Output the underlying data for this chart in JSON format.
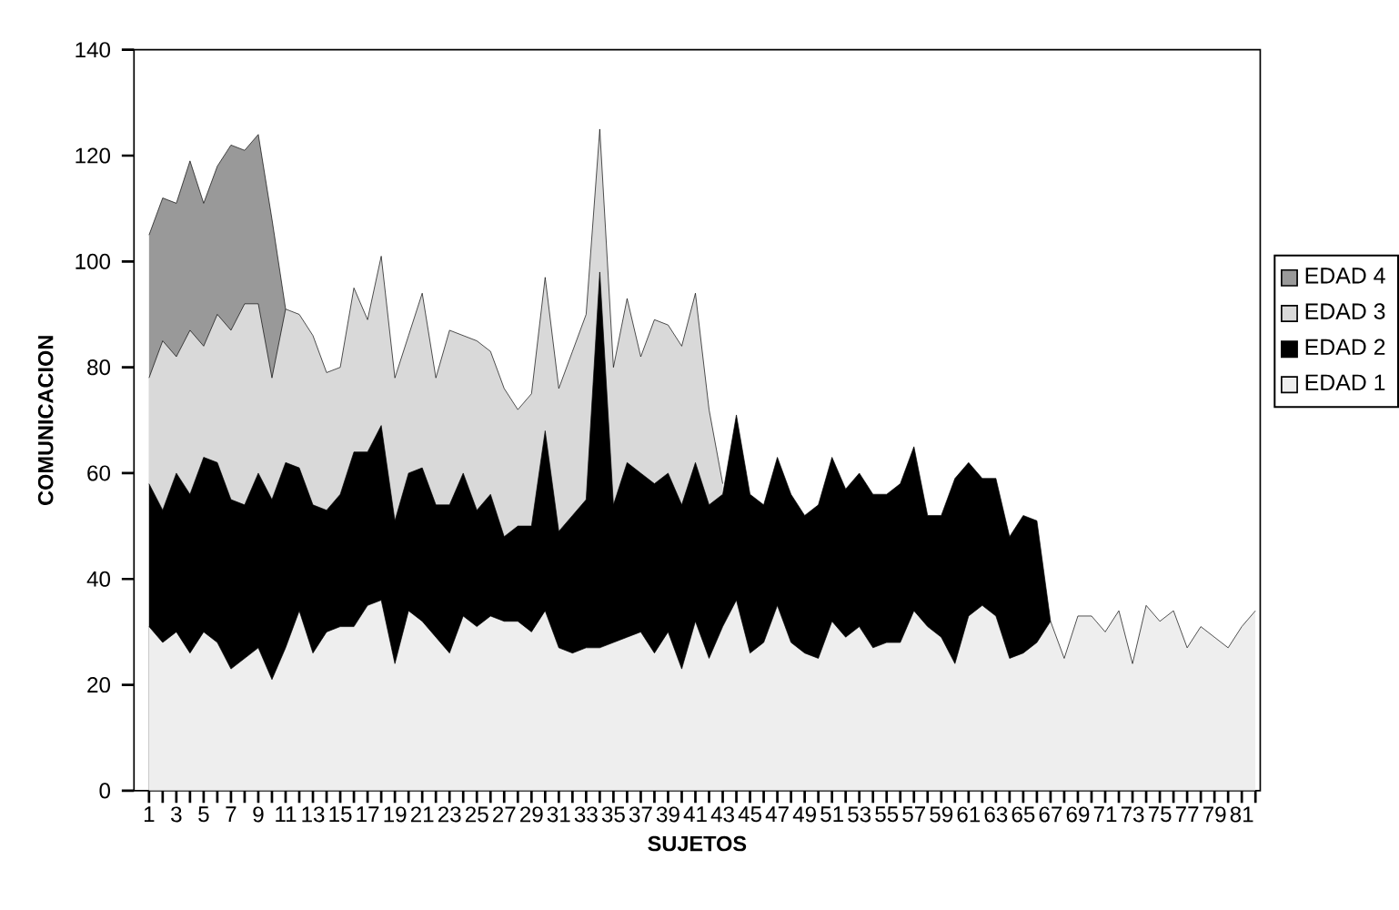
{
  "chart_data": {
    "type": "area",
    "xlabel": "SUJETOS",
    "ylabel": "COMUNICACION",
    "categories": [
      "1",
      null,
      "3",
      null,
      "5",
      null,
      "7",
      null,
      "9",
      null,
      "11",
      null,
      "13",
      null,
      "15",
      null,
      "17",
      null,
      "19",
      null,
      "21",
      null,
      "23",
      null,
      "25",
      null,
      "27",
      null,
      "29",
      null,
      "31",
      null,
      "33",
      null,
      "35",
      null,
      "37",
      null,
      "39",
      null,
      "41",
      null,
      "43",
      null,
      "45",
      null,
      "47",
      null,
      "49",
      null,
      "51",
      null,
      "53",
      null,
      "55",
      null,
      "57",
      null,
      "59",
      null,
      "61",
      null,
      "63",
      null,
      "65",
      null,
      "67",
      null,
      "69",
      null,
      "71",
      null,
      "73",
      null,
      "75",
      null,
      "77",
      null,
      "79",
      null,
      "81",
      null
    ],
    "series": [
      {
        "name": "EDAD 4",
        "color": "#999999",
        "values": [
          105,
          112,
          111,
          119,
          111,
          118,
          122,
          121,
          124,
          108,
          91,
          null,
          null,
          null,
          null,
          null,
          null,
          null,
          null,
          null,
          null,
          null,
          null,
          null,
          null,
          null,
          null,
          null,
          null,
          null,
          null,
          null,
          null,
          null,
          null,
          null,
          null,
          null,
          null,
          null,
          null,
          null,
          null,
          null,
          null,
          null,
          null,
          null,
          null,
          null,
          null,
          null,
          null,
          null,
          null,
          null,
          null,
          null,
          null,
          null,
          null,
          null,
          null,
          null,
          null,
          null,
          null,
          null,
          null,
          null,
          null,
          null,
          null,
          null,
          null,
          null,
          null,
          null,
          null,
          null,
          null,
          null
        ]
      },
      {
        "name": "EDAD 3",
        "color": "#d9d9d9",
        "values": [
          78,
          85,
          82,
          87,
          84,
          90,
          87,
          92,
          92,
          78,
          91,
          90,
          86,
          79,
          80,
          95,
          89,
          101,
          78,
          86,
          94,
          78,
          87,
          86,
          85,
          83,
          76,
          72,
          75,
          97,
          76,
          83,
          90,
          125,
          80,
          93,
          82,
          89,
          88,
          84,
          94,
          72,
          58,
          null,
          null,
          null,
          null,
          null,
          null,
          null,
          null,
          null,
          null,
          null,
          null,
          null,
          null,
          null,
          null,
          null,
          null,
          null,
          null,
          null,
          null,
          null,
          null,
          null,
          null,
          null,
          null,
          null,
          null,
          null,
          null,
          null,
          null,
          null,
          null,
          null,
          null,
          null
        ]
      },
      {
        "name": "EDAD 2",
        "color": "#000000",
        "values": [
          58,
          53,
          60,
          56,
          63,
          62,
          55,
          54,
          60,
          55,
          62,
          61,
          54,
          53,
          56,
          64,
          64,
          69,
          51,
          60,
          61,
          54,
          54,
          60,
          53,
          56,
          48,
          50,
          50,
          68,
          49,
          52,
          55,
          98,
          54,
          62,
          60,
          58,
          60,
          54,
          62,
          54,
          56,
          71,
          56,
          54,
          63,
          56,
          52,
          54,
          63,
          57,
          60,
          56,
          56,
          58,
          65,
          52,
          52,
          59,
          62,
          59,
          59,
          48,
          52,
          51,
          32,
          null,
          null,
          null,
          null,
          null,
          null,
          null,
          null,
          null,
          null,
          null,
          null,
          null,
          null,
          null
        ]
      },
      {
        "name": "EDAD 1",
        "color": "#eeeeee",
        "values": [
          31,
          28,
          30,
          26,
          30,
          28,
          23,
          25,
          27,
          21,
          27,
          34,
          26,
          30,
          31,
          31,
          35,
          36,
          24,
          34,
          32,
          29,
          26,
          33,
          31,
          33,
          32,
          32,
          30,
          34,
          27,
          26,
          27,
          27,
          28,
          29,
          30,
          26,
          30,
          23,
          32,
          25,
          31,
          36,
          26,
          28,
          35,
          28,
          26,
          25,
          32,
          29,
          31,
          27,
          28,
          28,
          34,
          31,
          29,
          24,
          33,
          35,
          33,
          25,
          26,
          28,
          32,
          25,
          33,
          33,
          30,
          34,
          24,
          35,
          32,
          34,
          27,
          31,
          29,
          27,
          31,
          34
        ]
      }
    ],
    "ylim": [
      0,
      140
    ],
    "yticks": [
      0,
      20,
      40,
      60,
      80,
      100,
      120,
      140
    ],
    "legend": "right"
  }
}
